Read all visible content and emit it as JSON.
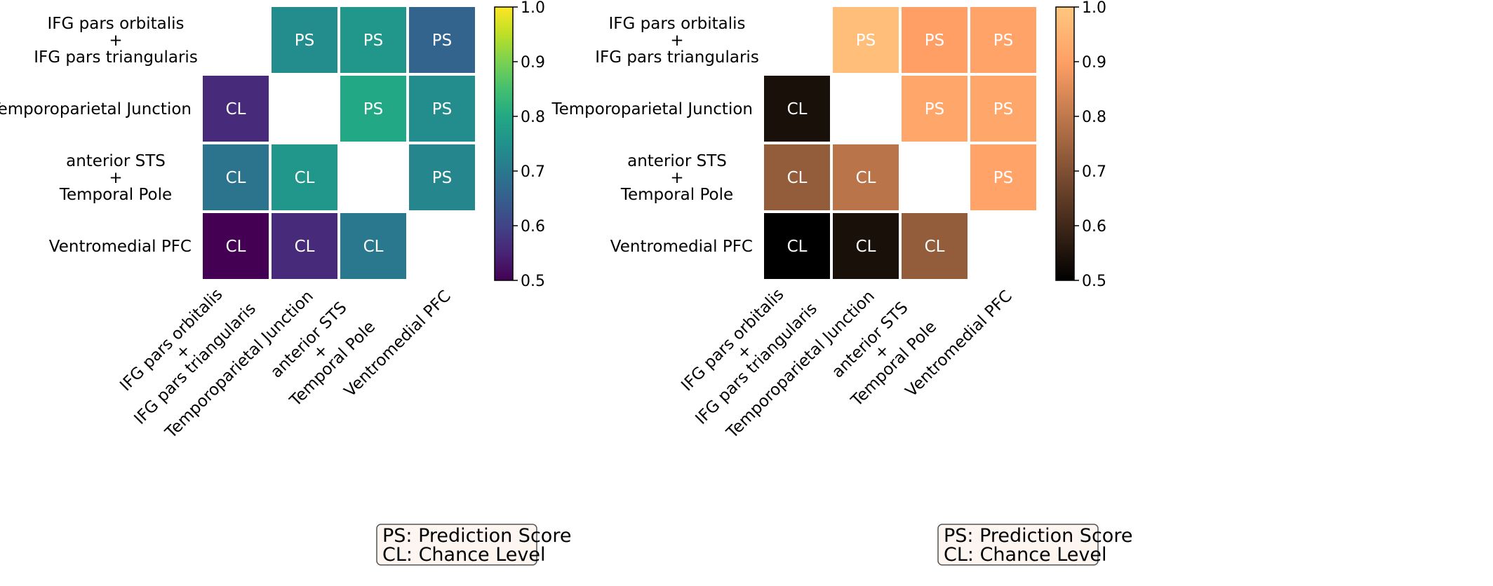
{
  "chart_data": [
    {
      "type": "heatmap",
      "colormap": "viridis",
      "rows": [
        "IFG pars orbitalis\n+\nIFG pars triangularis",
        "Temporoparietal Junction",
        "anterior STS\n+\nTemporal Pole",
        "Ventromedial PFC"
      ],
      "columns": [
        "IFG pars orbitalis\n+\nIFG pars triangularis",
        "Temporoparietal Junction",
        "anterior STS\n+\nTemporal Pole",
        "Ventromedial PFC"
      ],
      "values": [
        [
          null,
          0.74,
          0.76,
          0.66
        ],
        [
          0.56,
          null,
          0.8,
          0.74
        ],
        [
          0.69,
          0.76,
          null,
          0.73
        ],
        [
          0.5,
          0.56,
          0.7,
          null
        ]
      ],
      "cell_labels": [
        [
          null,
          "PS",
          "PS",
          "PS"
        ],
        [
          "CL",
          null,
          "PS",
          "PS"
        ],
        [
          "CL",
          "CL",
          null,
          "PS"
        ],
        [
          "CL",
          "CL",
          "CL",
          null
        ]
      ],
      "colorbar": {
        "range": [
          0.5,
          1.0
        ],
        "ticks": [
          "0.5",
          "0.6",
          "0.7",
          "0.8",
          "0.9",
          "1.0"
        ]
      },
      "legend": {
        "placement": "bottom-right",
        "lines": [
          "PS: Prediction Score",
          "CL: Chance Level"
        ]
      }
    },
    {
      "type": "heatmap",
      "colormap": "copper",
      "rows": [
        "IFG pars orbitalis\n+\nIFG pars triangularis",
        "Temporoparietal Junction",
        "anterior STS\n+\nTemporal Pole",
        "Ventromedial PFC"
      ],
      "columns": [
        "IFG pars orbitalis\n+\nIFG pars triangularis",
        "Temporoparietal Junction",
        "anterior STS\n+\nTemporal Pole",
        "Ventromedial PFC"
      ],
      "values": [
        [
          null,
          0.98,
          0.9,
          0.91
        ],
        [
          0.54,
          null,
          0.92,
          0.92
        ],
        [
          0.73,
          0.79,
          null,
          0.91
        ],
        [
          0.5,
          0.54,
          0.73,
          null
        ]
      ],
      "cell_labels": [
        [
          null,
          "PS",
          "PS",
          "PS"
        ],
        [
          "CL",
          null,
          "PS",
          "PS"
        ],
        [
          "CL",
          "CL",
          null,
          "PS"
        ],
        [
          "CL",
          "CL",
          "CL",
          null
        ]
      ],
      "colorbar": {
        "range": [
          0.5,
          1.0
        ],
        "ticks": [
          "0.5",
          "0.6",
          "0.7",
          "0.8",
          "0.9",
          "1.0"
        ]
      },
      "legend": {
        "placement": "bottom-right",
        "lines": [
          "PS: Prediction Score",
          "CL: Chance Level"
        ]
      }
    }
  ]
}
